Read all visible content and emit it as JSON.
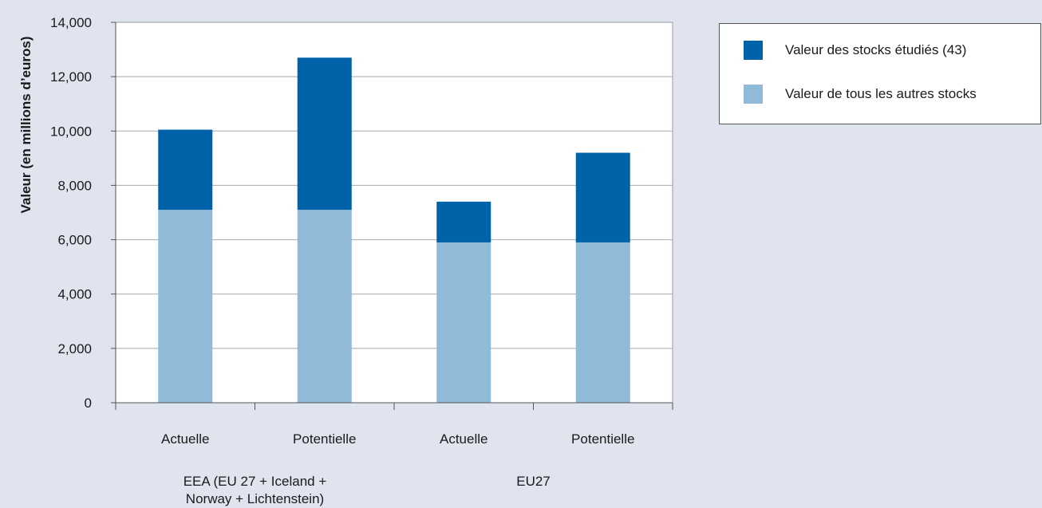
{
  "chart_data": {
    "type": "bar",
    "stacked": true,
    "categories": [
      "Actuelle",
      "Potentielle",
      "Actuelle",
      "Potentielle"
    ],
    "groups": [
      {
        "label_lines": [
          "EEA (EU 27 + Iceland +",
          "Norway + Lichtenstein)"
        ],
        "category_indices": [
          0,
          1
        ]
      },
      {
        "label_lines": [
          "EU27"
        ],
        "category_indices": [
          2,
          3
        ]
      }
    ],
    "series": [
      {
        "name": "Valeur de tous les autres stocks",
        "color": "#8fbad8",
        "values": [
          7100,
          7100,
          5900,
          5900
        ]
      },
      {
        "name": "Valeur des stocks étudiés (43)",
        "color": "#0062a8",
        "values": [
          2950,
          5600,
          1500,
          3300
        ]
      }
    ],
    "ylabel": "Valeur (en millions d’euros)",
    "xlabel": "",
    "ylim": [
      0,
      14000
    ],
    "yticks": [
      0,
      2000,
      4000,
      6000,
      8000,
      10000,
      12000,
      14000
    ],
    "ytick_labels": [
      "0",
      "2,000",
      "4,000",
      "6,000",
      "8,000",
      "10,000",
      "12,000",
      "14,000"
    ],
    "grid": true,
    "legend_position": "top-right",
    "legend_order": [
      1,
      0
    ]
  }
}
